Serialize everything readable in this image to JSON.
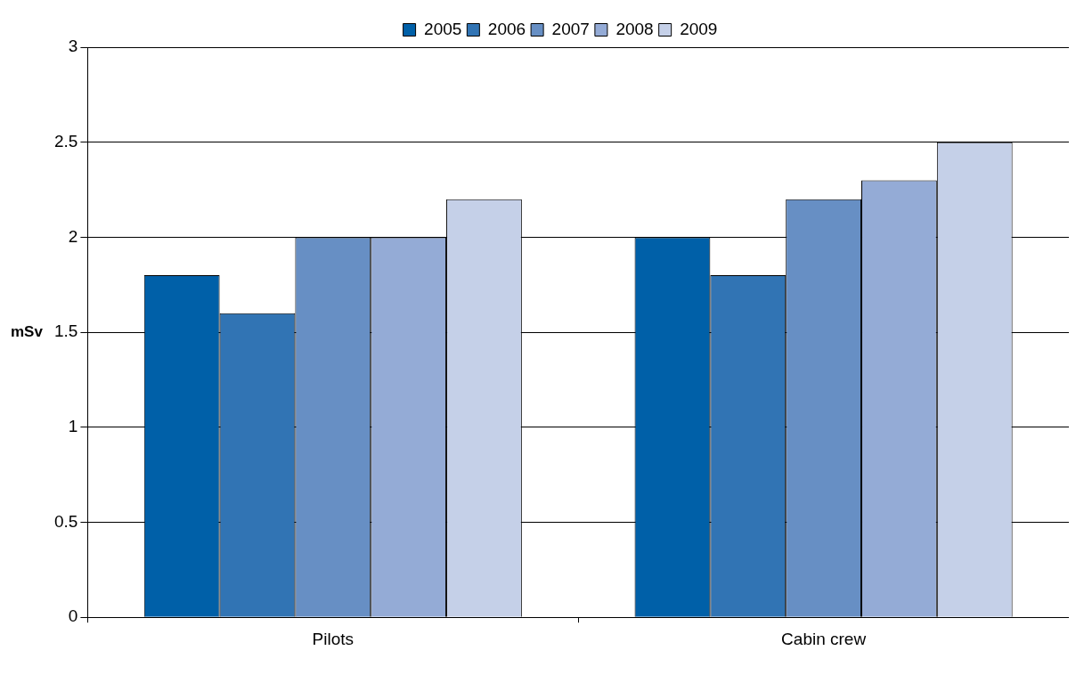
{
  "chart_data": {
    "type": "bar",
    "ylabel": "mSv",
    "categories": [
      "Pilots",
      "Cabin crew"
    ],
    "series": [
      {
        "name": "2005",
        "color": "#0060a8",
        "values": [
          1.8,
          2.0
        ]
      },
      {
        "name": "2006",
        "color": "#3174b4",
        "values": [
          1.6,
          1.8
        ]
      },
      {
        "name": "2007",
        "color": "#678fc4",
        "values": [
          2.0,
          2.2
        ]
      },
      {
        "name": "2008",
        "color": "#94abd6",
        "values": [
          2.0,
          2.3
        ]
      },
      {
        "name": "2009",
        "color": "#c5d0e8",
        "values": [
          2.2,
          2.5
        ]
      }
    ],
    "ylim": [
      0,
      3
    ],
    "yticks": [
      0,
      0.5,
      1,
      1.5,
      2,
      2.5,
      3
    ],
    "grid": "y",
    "legend": "top"
  }
}
